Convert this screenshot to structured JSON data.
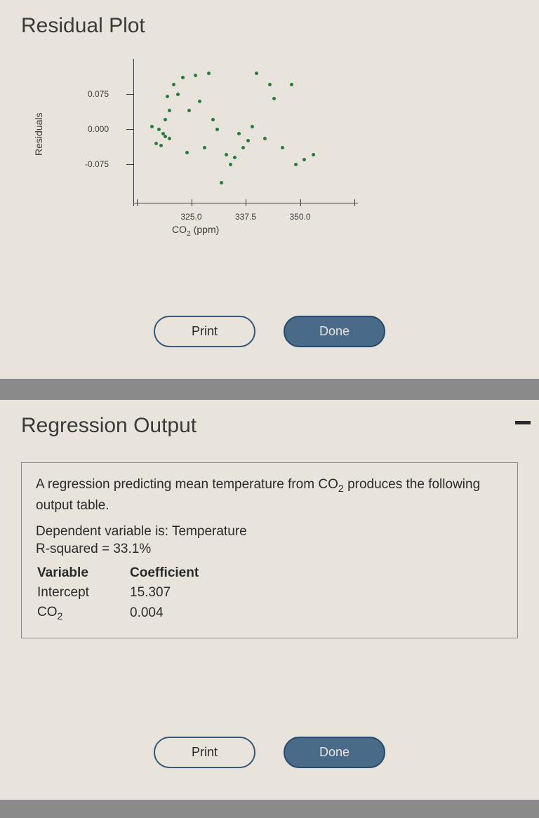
{
  "panel1": {
    "title": "Residual Plot",
    "chart": {
      "type": "scatter",
      "ylabel": "Residuals",
      "xlabel_html": "CO<sub>2</sub> (ppm)",
      "xlabel": "CO2 (ppm)",
      "point_color": "#2a7a3a",
      "axis_color": "#3a3a3a",
      "background_color": "#e8e4dc",
      "label_fontsize": 14,
      "tick_fontsize": 12,
      "xlim": [
        312.5,
        362.5
      ],
      "ylim": [
        -0.15,
        0.15
      ],
      "x_ticks": [
        325.0,
        337.5,
        350.0
      ],
      "x_tick_labels": [
        "325.0",
        "337.5",
        "350.0"
      ],
      "y_ticks": [
        -0.075,
        0.0,
        0.075
      ],
      "y_tick_labels": [
        "-0.075",
        "0.000",
        "0.075"
      ],
      "extra_x_tick_marks": [
        312.5,
        362.5
      ],
      "points": [
        [
          316,
          0.005
        ],
        [
          317,
          -0.03
        ],
        [
          317.5,
          0.0
        ],
        [
          318,
          -0.035
        ],
        [
          318.5,
          -0.01
        ],
        [
          319,
          0.02
        ],
        [
          319,
          -0.015
        ],
        [
          319.5,
          0.07
        ],
        [
          320,
          -0.02
        ],
        [
          320,
          0.04
        ],
        [
          321,
          0.095
        ],
        [
          322,
          0.075
        ],
        [
          323,
          0.11
        ],
        [
          324,
          -0.05
        ],
        [
          324.5,
          0.04
        ],
        [
          326,
          0.115
        ],
        [
          327,
          0.06
        ],
        [
          328,
          -0.04
        ],
        [
          329,
          0.12
        ],
        [
          330,
          0.02
        ],
        [
          331,
          0.0
        ],
        [
          332,
          -0.115
        ],
        [
          333,
          -0.055
        ],
        [
          334,
          -0.075
        ],
        [
          335,
          -0.06
        ],
        [
          336,
          -0.01
        ],
        [
          337,
          -0.04
        ],
        [
          338,
          -0.025
        ],
        [
          339,
          0.005
        ],
        [
          340,
          0.12
        ],
        [
          342,
          -0.02
        ],
        [
          343,
          0.095
        ],
        [
          344,
          0.065
        ],
        [
          346,
          -0.04
        ],
        [
          348,
          0.095
        ],
        [
          349,
          -0.075
        ],
        [
          351,
          -0.065
        ],
        [
          353,
          -0.055
        ]
      ]
    },
    "buttons": {
      "print": "Print",
      "done": "Done"
    }
  },
  "panel2": {
    "title": "Regression Output",
    "intro_html": "A regression predicting mean temperature from CO<sub>2</sub> produces the following output table.",
    "dependent": "Dependent variable is: Temperature",
    "rsquared": "R-squared = 33.1%",
    "table": {
      "headers": [
        "Variable",
        "Coefficient"
      ],
      "rows": [
        {
          "var": "Intercept",
          "var_html": "Intercept",
          "coef": "15.307"
        },
        {
          "var": "CO2",
          "var_html": "CO<sub>2</sub>",
          "coef": "0.004"
        }
      ]
    },
    "buttons": {
      "print": "Print",
      "done": "Done"
    }
  },
  "colors": {
    "panel_bg": "#e8e4dc",
    "body_bg": "#8a8a8a",
    "text": "#2a2a2a",
    "button_border": "#3a5a7a",
    "button_done_bg": "#4a6a8a"
  }
}
